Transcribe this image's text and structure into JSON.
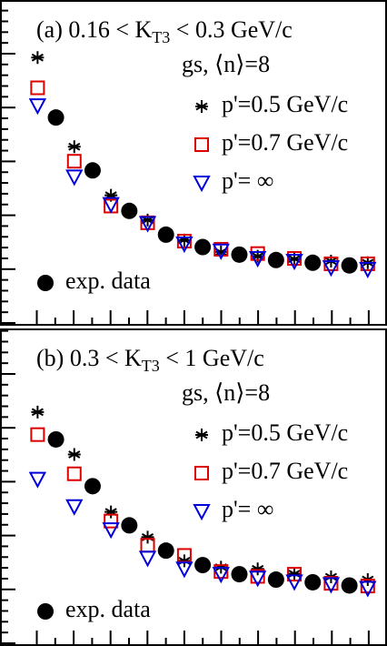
{
  "chart_data": [
    {
      "type": "scatter",
      "title": [
        "(a) 0.16 < K",
        "T3",
        " < 0.3 GeV/c"
      ],
      "annotation": "gs, ⟨n⟩=8",
      "xlim": [
        0,
        21
      ],
      "ylim": [
        0,
        6
      ],
      "series": [
        {
          "name": "p'=0.5 GeV/c",
          "marker": "star",
          "color": "#000000",
          "x": [
            2,
            4,
            6,
            8,
            10,
            12,
            14,
            16,
            18,
            20
          ],
          "values": [
            4.95,
            3.3,
            2.4,
            1.94,
            1.57,
            1.35,
            1.27,
            1.22,
            1.18,
            1.15
          ]
        },
        {
          "name": "p'=0.7 GeV/c",
          "marker": "square",
          "color": "#dd0000",
          "x": [
            2,
            4,
            6,
            8,
            10,
            12,
            14,
            16,
            18,
            20
          ],
          "values": [
            4.39,
            3.03,
            2.2,
            1.89,
            1.55,
            1.4,
            1.32,
            1.23,
            1.13,
            1.13
          ]
        },
        {
          "name": "p'= ∞",
          "marker": "triangle",
          "color": "#0000dd",
          "x": [
            2,
            4,
            6,
            8,
            10,
            12,
            14,
            16,
            18,
            20
          ],
          "values": [
            4.06,
            2.74,
            2.23,
            1.88,
            1.5,
            1.37,
            1.23,
            1.18,
            1.06,
            1.03
          ]
        },
        {
          "name": "exp. data",
          "marker": "circle",
          "color": "#000000",
          "x": [
            3,
            5,
            7,
            9,
            11,
            13,
            15,
            17,
            19
          ],
          "values": [
            3.84,
            2.86,
            2.11,
            1.67,
            1.44,
            1.3,
            1.2,
            1.15,
            1.1
          ]
        }
      ]
    },
    {
      "type": "scatter",
      "title": [
        "(b) 0.3 < K",
        "T3",
        " < 1 GeV/c"
      ],
      "annotation": "gs, ⟨n⟩=8",
      "xlim": [
        0,
        21
      ],
      "ylim": [
        0,
        5.88
      ],
      "series": [
        {
          "name": "p'=0.5 GeV/c",
          "marker": "star",
          "color": "#000000",
          "x": [
            2,
            4,
            6,
            8,
            10,
            12,
            14,
            16,
            18,
            20
          ],
          "values": [
            4.34,
            3.55,
            2.48,
            2.01,
            1.57,
            1.45,
            1.42,
            1.33,
            1.27,
            1.22
          ]
        },
        {
          "name": "p'=0.7 GeV/c",
          "marker": "square",
          "color": "#dd0000",
          "x": [
            2,
            4,
            6,
            8,
            10,
            12,
            14,
            16,
            18,
            20
          ],
          "values": [
            3.92,
            3.19,
            2.31,
            1.86,
            1.67,
            1.37,
            1.28,
            1.32,
            1.15,
            1.1
          ]
        },
        {
          "name": "p'= ∞",
          "marker": "triangle",
          "color": "#0000dd",
          "x": [
            2,
            4,
            6,
            8,
            10,
            12,
            14,
            16,
            18,
            20
          ],
          "values": [
            3.09,
            2.58,
            2.15,
            1.62,
            1.42,
            1.32,
            1.25,
            1.18,
            1.13,
            1.06
          ]
        },
        {
          "name": "exp. data",
          "marker": "circle",
          "color": "#000000",
          "x": [
            3,
            5,
            7,
            9,
            11,
            13,
            15,
            17,
            19
          ],
          "values": [
            3.83,
            2.96,
            2.23,
            1.76,
            1.49,
            1.32,
            1.22,
            1.17,
            1.11
          ]
        }
      ]
    }
  ]
}
